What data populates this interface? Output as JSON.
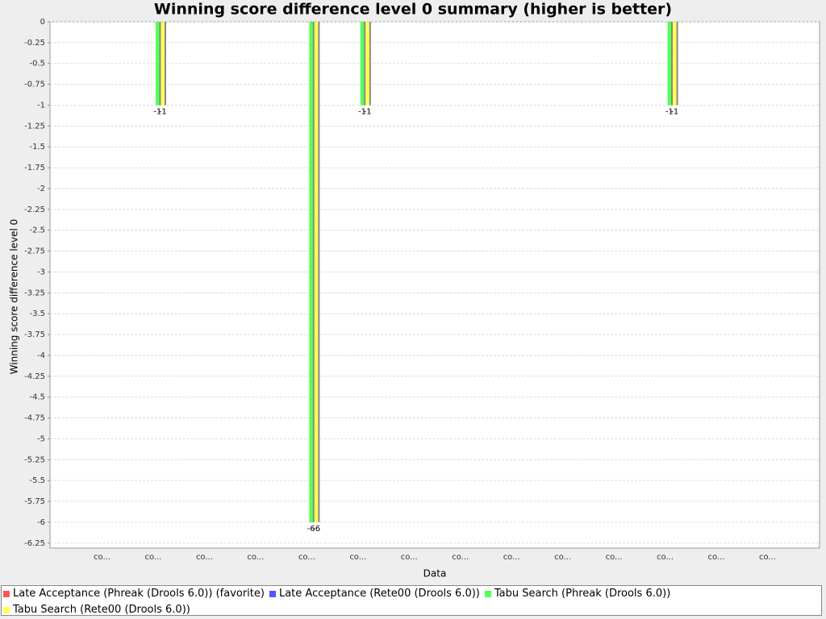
{
  "chart_data": {
    "type": "bar",
    "title": "Winning score difference level 0 summary (higher is better)",
    "x_label": "Data",
    "y_label": "Winning score difference level 0",
    "categories": [
      "co...",
      "co...",
      "co...",
      "co...",
      "co...",
      "co...",
      "co...",
      "co...",
      "co...",
      "co...",
      "co...",
      "co...",
      "co...",
      "co..."
    ],
    "series": [
      {
        "name": "Late Acceptance (Phreak (Drools 6.0)) (favorite)",
        "color": "#ff5555",
        "values": [
          null,
          null,
          null,
          null,
          null,
          null,
          null,
          null,
          null,
          null,
          null,
          null,
          null,
          null
        ]
      },
      {
        "name": "Late Acceptance (Rete00 (Drools 6.0))",
        "color": "#5555ff",
        "values": [
          null,
          null,
          null,
          null,
          null,
          null,
          null,
          null,
          null,
          null,
          null,
          null,
          null,
          null
        ]
      },
      {
        "name": "Tabu Search (Phreak (Drools 6.0))",
        "color": "#55ff55",
        "values": [
          null,
          -1,
          null,
          null,
          -6,
          -1,
          null,
          null,
          null,
          null,
          null,
          -1,
          null,
          null
        ]
      },
      {
        "name": "Tabu Search (Rete00 (Drools 6.0))",
        "color": "#ffff55",
        "values": [
          null,
          -1,
          null,
          null,
          -6,
          -1,
          null,
          null,
          null,
          null,
          null,
          -1,
          null,
          null
        ]
      }
    ],
    "ylim": [
      -6.31,
      0
    ],
    "yticks": [
      0,
      -0.25,
      -0.5,
      -0.75,
      -1,
      -1.25,
      -1.5,
      -1.75,
      -2,
      -2.25,
      -2.5,
      -2.75,
      -3,
      -3.25,
      -3.5,
      -3.75,
      -4,
      -4.25,
      -4.5,
      -4.75,
      -5,
      -5.25,
      -5.5,
      -5.75,
      -6,
      -6.25
    ],
    "grid": true,
    "legend": "bottom"
  }
}
